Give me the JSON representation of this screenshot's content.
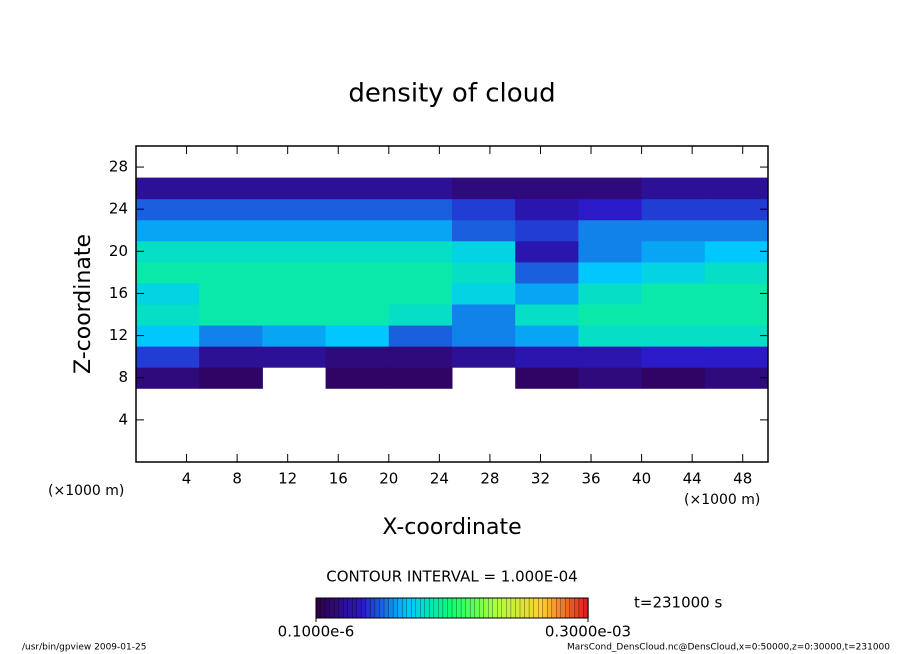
{
  "chart_data": {
    "type": "heatmap",
    "title": "density of cloud",
    "x_label": "X-coordinate",
    "y_label": "Z-coordinate",
    "x_unit": "(×1000 m)",
    "y_unit": "(×1000 m)",
    "contour_interval": "CONTOUR INTERVAL = 1.000E-04",
    "time": "t=231000 s",
    "footer_left": "/usr/bin/gpview  2009-01-25",
    "footer_right": "MarsCond_DensCloud.nc@DensCloud,x=0:50000,z=0:30000,t=231000",
    "xlim": [
      0,
      50
    ],
    "ylim": [
      0,
      30
    ],
    "xticks": [
      4,
      8,
      12,
      16,
      20,
      24,
      28,
      32,
      36,
      40,
      44,
      48
    ],
    "yticks": [
      4,
      8,
      12,
      16,
      20,
      24,
      28
    ],
    "colormap": [
      "#30004a",
      "#2a1ac8",
      "#00c8ff",
      "#10ff70",
      "#b0ff40",
      "#ffd030",
      "#e02020"
    ],
    "clim": [
      1e-07,
      0.0003
    ],
    "colorbar_ticks": [
      {
        "value": 1e-07,
        "label": "0.1000e-6"
      },
      {
        "value": 0.0003,
        "label": "0.3000e-03"
      }
    ],
    "field": {
      "x_edges": [
        0,
        5,
        10,
        15,
        20,
        25,
        30,
        35,
        40,
        45,
        50
      ],
      "z_edges": [
        7,
        9,
        11,
        13,
        15,
        17,
        19,
        21,
        23,
        25,
        27
      ],
      "values": [
        [
          2e-05,
          1e-05,
          null,
          1e-05,
          1e-05,
          null,
          1e-05,
          2e-05,
          1e-05,
          2e-05
        ],
        [
          6e-05,
          3e-05,
          3e-05,
          2e-05,
          2e-05,
          3e-05,
          4e-05,
          4e-05,
          5e-05,
          5e-05
        ],
        [
          0.0001,
          8e-05,
          9e-05,
          0.0001,
          7e-05,
          8e-05,
          9e-05,
          0.00012,
          0.00012,
          0.00012
        ],
        [
          0.00012,
          0.00013,
          0.00013,
          0.00013,
          0.00012,
          8e-05,
          0.00012,
          0.00013,
          0.00013,
          0.00013
        ],
        [
          0.00011,
          0.00013,
          0.00013,
          0.00013,
          0.00013,
          0.00011,
          9e-05,
          0.00012,
          0.00013,
          0.00013
        ],
        [
          0.00013,
          0.00013,
          0.00013,
          0.00013,
          0.00013,
          0.00012,
          7e-05,
          0.0001,
          0.00011,
          0.00012
        ],
        [
          0.00012,
          0.00012,
          0.00012,
          0.00012,
          0.00012,
          0.00011,
          4e-05,
          8e-05,
          9e-05,
          0.0001
        ],
        [
          9e-05,
          9e-05,
          9e-05,
          9e-05,
          9e-05,
          7e-05,
          6e-05,
          8e-05,
          8e-05,
          8e-05
        ],
        [
          7e-05,
          7e-05,
          7e-05,
          7e-05,
          7e-05,
          6e-05,
          4e-05,
          5e-05,
          6e-05,
          6e-05
        ],
        [
          3e-05,
          3e-05,
          3e-05,
          3e-05,
          3e-05,
          2e-05,
          2e-05,
          2e-05,
          3e-05,
          3e-05
        ]
      ]
    }
  }
}
